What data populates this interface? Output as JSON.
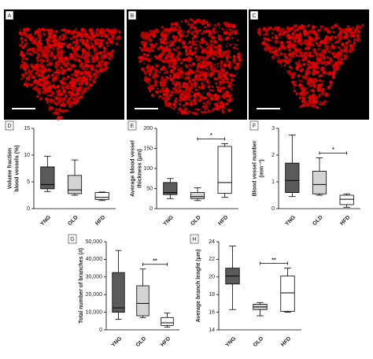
{
  "images": [
    {
      "label": "A"
    },
    {
      "label": "B"
    },
    {
      "label": "C"
    }
  ],
  "chart_data": [
    {
      "type": "box",
      "panel_label": "D",
      "ylabel": [
        "Volume fraction",
        "blood vessels (%)"
      ],
      "categories": [
        "YNG",
        "OLD",
        "HFD"
      ],
      "ylim": [
        0,
        15
      ],
      "yticks": [
        0,
        5,
        10,
        15
      ],
      "boxes": [
        {
          "whisker_low": 3.2,
          "q1": 3.7,
          "median": 4.5,
          "q3": 7.8,
          "whisker_high": 9.8,
          "color": "#5a5a5a"
        },
        {
          "whisker_low": 2.5,
          "q1": 2.8,
          "median": 3.5,
          "q3": 6.2,
          "whisker_high": 9.1,
          "color": "#d4d4d4"
        },
        {
          "whisker_low": 1.5,
          "q1": 1.7,
          "median": 2.1,
          "q3": 3.0,
          "whisker_high": 3.1,
          "color": "#ffffff"
        }
      ]
    },
    {
      "type": "box",
      "panel_label": "E",
      "ylabel": [
        "Average blood vessel",
        "thickness (μm)"
      ],
      "categories": [
        "YNG",
        "OLD",
        "HFD"
      ],
      "ylim": [
        0,
        200
      ],
      "yticks": [
        0,
        50,
        100,
        150,
        200
      ],
      "boxes": [
        {
          "whisker_low": 25,
          "q1": 35,
          "median": 40,
          "q3": 65,
          "whisker_high": 75,
          "color": "#5a5a5a"
        },
        {
          "whisker_low": 20,
          "q1": 25,
          "median": 30,
          "q3": 40,
          "whisker_high": 52,
          "color": "#d4d4d4"
        },
        {
          "whisker_low": 28,
          "q1": 38,
          "median": 65,
          "q3": 155,
          "whisker_high": 162,
          "color": "#ffffff"
        }
      ],
      "significance": {
        "text": "*",
        "between": [
          "OLD",
          "HFD"
        ]
      }
    },
    {
      "type": "box",
      "panel_label": "F",
      "ylabel": [
        "Blood vessel number",
        "(mm⁻¹)"
      ],
      "categories": [
        "YNG",
        "OLD",
        "HFD"
      ],
      "ylim": [
        0,
        3
      ],
      "yticks": [
        0,
        1,
        2,
        3
      ],
      "boxes": [
        {
          "whisker_low": 0.45,
          "q1": 0.6,
          "median": 1.05,
          "q3": 1.7,
          "whisker_high": 2.75,
          "color": "#5a5a5a"
        },
        {
          "whisker_low": 0.5,
          "q1": 0.55,
          "median": 0.9,
          "q3": 1.4,
          "whisker_high": 1.9,
          "color": "#d4d4d4"
        },
        {
          "whisker_low": 0.05,
          "q1": 0.15,
          "median": 0.35,
          "q3": 0.5,
          "whisker_high": 0.55,
          "color": "#ffffff"
        }
      ],
      "significance": {
        "text": "*",
        "between": [
          "OLD",
          "HFD"
        ]
      }
    },
    {
      "type": "box",
      "panel_label": "G",
      "ylabel": [
        "Total number of branches (#)"
      ],
      "categories": [
        "YNG",
        "OLD",
        "HFD"
      ],
      "ylim": [
        0,
        50000
      ],
      "yticks": [
        0,
        {
          "value": 10000,
          "label": "10,000"
        },
        {
          "value": 20000,
          "label": "20,000"
        },
        {
          "value": 30000,
          "label": "30,000"
        },
        {
          "value": 40000,
          "label": "40,000"
        },
        {
          "value": 50000,
          "label": "50,000"
        }
      ],
      "boxes": [
        {
          "whisker_low": 6000,
          "q1": 10000,
          "median": 12500,
          "q3": 32500,
          "whisker_high": 45000,
          "color": "#5a5a5a"
        },
        {
          "whisker_low": 7000,
          "q1": 8000,
          "median": 15000,
          "q3": 25000,
          "whisker_high": 34500,
          "color": "#d4d4d4"
        },
        {
          "whisker_low": 1500,
          "q1": 2500,
          "median": 4000,
          "q3": 7000,
          "whisker_high": 9500,
          "color": "#ffffff"
        }
      ],
      "significance": {
        "text": "**",
        "between": [
          "OLD",
          "HFD"
        ]
      }
    },
    {
      "type": "box",
      "panel_label": "H",
      "ylabel": [
        "Average branch lenght (μm)"
      ],
      "categories": [
        "YNG",
        "OLD",
        "HFD"
      ],
      "ylim": [
        14,
        24
      ],
      "yticks": [
        14,
        16,
        18,
        20,
        22,
        24
      ],
      "boxes": [
        {
          "whisker_low": 16.3,
          "q1": 19.2,
          "median": 20.1,
          "q3": 21,
          "whisker_high": 23.5,
          "color": "#5a5a5a"
        },
        {
          "whisker_low": 15.6,
          "q1": 16.3,
          "median": 16.6,
          "q3": 16.9,
          "whisker_high": 17.1,
          "color": "#d4d4d4"
        },
        {
          "whisker_low": 16,
          "q1": 16.1,
          "median": 18.2,
          "q3": 20.1,
          "whisker_high": 21,
          "color": "#ffffff"
        }
      ],
      "significance": {
        "text": "**",
        "between": [
          "OLD",
          "HFD"
        ]
      }
    }
  ]
}
